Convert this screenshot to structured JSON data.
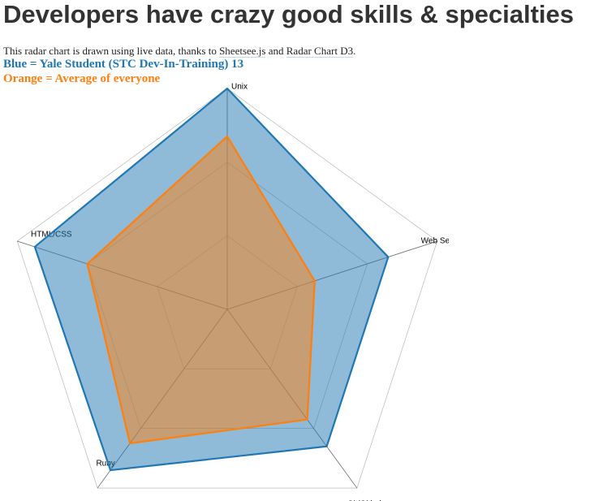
{
  "title": "Developers have crazy good skills & specialties",
  "intro": [
    "This radar chart is drawn using live data, thanks to ",
    "Sheetsee.js",
    " and ",
    "Radar Chart D3",
    "."
  ],
  "chart_data": {
    "type": "radar",
    "categories": [
      "Unix",
      "Web Se",
      "Git/Github",
      "Ruby",
      "HTML/CSS"
    ],
    "rlim": [
      0,
      3
    ],
    "rticks": [
      1,
      2,
      3
    ],
    "grid": true,
    "series": [
      {
        "name": "Blue = Yale Student (STC Dev-In-Training) 13",
        "color": "#1f77b4",
        "values": [
          3,
          2.3,
          2.3,
          2.7,
          2.75
        ]
      },
      {
        "name": "Orange = Average of everyone",
        "color": "#ff7f0e",
        "values": [
          2.35,
          1.25,
          1.85,
          2.25,
          2
        ]
      }
    ]
  }
}
